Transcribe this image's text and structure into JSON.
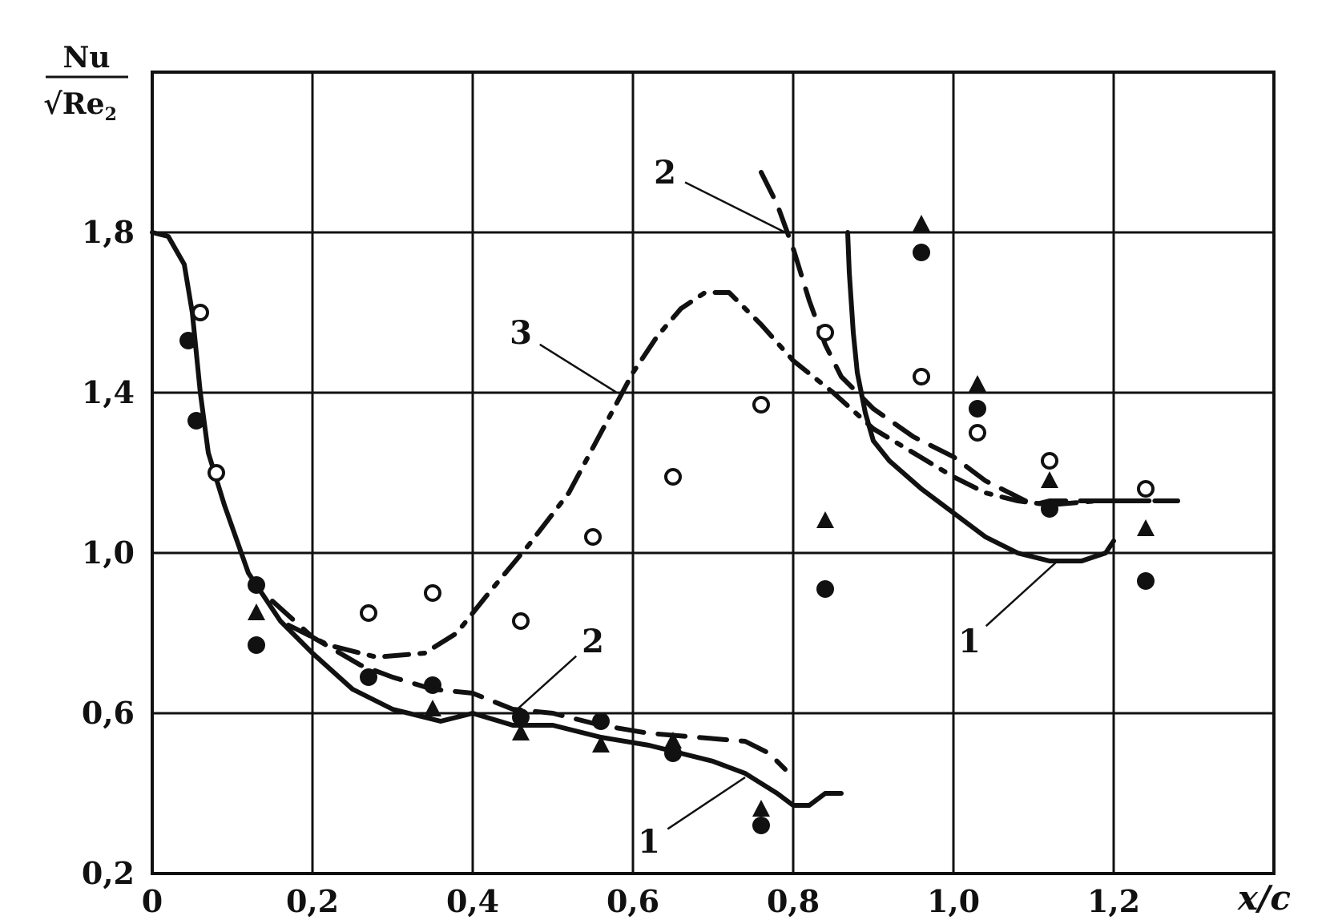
{
  "chart_data": {
    "type": "line",
    "ylabel": {
      "numerator": "Nu",
      "denominator": "√Re",
      "subscript": "2"
    },
    "xlabel": "x/c",
    "xlim": [
      0,
      1.4
    ],
    "ylim": [
      0.2,
      2.2
    ],
    "x_ticks": [
      {
        "value": 0,
        "label": "0"
      },
      {
        "value": 0.2,
        "label": "0,2"
      },
      {
        "value": 0.4,
        "label": "0,4"
      },
      {
        "value": 0.6,
        "label": "0,6"
      },
      {
        "value": 0.8,
        "label": "0,8"
      },
      {
        "value": 1.0,
        "label": "1,0"
      },
      {
        "value": 1.2,
        "label": "1,2"
      }
    ],
    "y_ticks": [
      {
        "value": 0.2,
        "label": "0,2"
      },
      {
        "value": 0.6,
        "label": "0,6"
      },
      {
        "value": 1.0,
        "label": "1,0"
      },
      {
        "value": 1.4,
        "label": "1,4"
      },
      {
        "value": 1.8,
        "label": "1,8"
      }
    ],
    "grid": true,
    "series": [
      {
        "id": "curve-1-suction",
        "style": "solid",
        "points": [
          [
            0,
            1.8
          ],
          [
            0.02,
            1.79
          ],
          [
            0.04,
            1.72
          ],
          [
            0.05,
            1.6
          ],
          [
            0.06,
            1.4
          ],
          [
            0.07,
            1.25
          ],
          [
            0.09,
            1.12
          ],
          [
            0.12,
            0.95
          ],
          [
            0.16,
            0.83
          ],
          [
            0.2,
            0.75
          ],
          [
            0.25,
            0.66
          ],
          [
            0.3,
            0.61
          ],
          [
            0.36,
            0.58
          ],
          [
            0.4,
            0.6
          ],
          [
            0.45,
            0.57
          ],
          [
            0.5,
            0.57
          ],
          [
            0.56,
            0.54
          ],
          [
            0.62,
            0.52
          ],
          [
            0.66,
            0.5
          ],
          [
            0.7,
            0.48
          ],
          [
            0.74,
            0.45
          ],
          [
            0.78,
            0.4
          ],
          [
            0.8,
            0.37
          ],
          [
            0.82,
            0.37
          ],
          [
            0.84,
            0.4
          ],
          [
            0.86,
            0.4
          ]
        ]
      },
      {
        "id": "curve-1-pressure",
        "style": "solid",
        "points": [
          [
            0.868,
            1.8
          ],
          [
            0.87,
            1.7
          ],
          [
            0.875,
            1.55
          ],
          [
            0.88,
            1.45
          ],
          [
            0.89,
            1.35
          ],
          [
            0.9,
            1.28
          ],
          [
            0.92,
            1.23
          ],
          [
            0.96,
            1.16
          ],
          [
            1.0,
            1.1
          ],
          [
            1.04,
            1.04
          ],
          [
            1.08,
            1.0
          ],
          [
            1.12,
            0.98
          ],
          [
            1.16,
            0.98
          ],
          [
            1.19,
            1.0
          ],
          [
            1.2,
            1.03
          ]
        ]
      },
      {
        "id": "curve-2-suction",
        "style": "dashed",
        "points": [
          [
            0.15,
            0.88
          ],
          [
            0.2,
            0.79
          ],
          [
            0.26,
            0.72
          ],
          [
            0.3,
            0.69
          ],
          [
            0.35,
            0.66
          ],
          [
            0.4,
            0.65
          ],
          [
            0.45,
            0.61
          ],
          [
            0.5,
            0.6
          ],
          [
            0.56,
            0.57
          ],
          [
            0.62,
            0.55
          ],
          [
            0.68,
            0.54
          ],
          [
            0.74,
            0.53
          ],
          [
            0.77,
            0.5
          ],
          [
            0.79,
            0.46
          ]
        ]
      },
      {
        "id": "curve-2-pressure",
        "style": "dashed",
        "points": [
          [
            0.76,
            1.95
          ],
          [
            0.78,
            1.87
          ],
          [
            0.8,
            1.76
          ],
          [
            0.82,
            1.63
          ],
          [
            0.84,
            1.52
          ],
          [
            0.86,
            1.44
          ],
          [
            0.9,
            1.36
          ],
          [
            0.95,
            1.29
          ],
          [
            1.0,
            1.24
          ],
          [
            1.04,
            1.18
          ],
          [
            1.08,
            1.14
          ],
          [
            1.1,
            1.12
          ],
          [
            1.12,
            1.13
          ],
          [
            1.16,
            1.13
          ],
          [
            1.2,
            1.13
          ],
          [
            1.28,
            1.13
          ]
        ]
      },
      {
        "id": "curve-3",
        "style": "dash-dot",
        "points": [
          [
            0.17,
            0.82
          ],
          [
            0.22,
            0.77
          ],
          [
            0.28,
            0.74
          ],
          [
            0.34,
            0.75
          ],
          [
            0.38,
            0.8
          ],
          [
            0.42,
            0.9
          ],
          [
            0.47,
            1.02
          ],
          [
            0.52,
            1.15
          ],
          [
            0.56,
            1.3
          ],
          [
            0.6,
            1.45
          ],
          [
            0.63,
            1.54
          ],
          [
            0.66,
            1.61
          ],
          [
            0.69,
            1.65
          ],
          [
            0.72,
            1.65
          ],
          [
            0.76,
            1.57
          ],
          [
            0.8,
            1.48
          ],
          [
            0.85,
            1.4
          ],
          [
            0.9,
            1.31
          ],
          [
            0.95,
            1.25
          ],
          [
            1.0,
            1.19
          ],
          [
            1.04,
            1.15
          ],
          [
            1.08,
            1.13
          ],
          [
            1.12,
            1.12
          ],
          [
            1.18,
            1.13
          ],
          [
            1.28,
            1.13
          ]
        ]
      }
    ],
    "markers": {
      "open_circle": [
        [
          0.06,
          1.6
        ],
        [
          0.08,
          1.2
        ],
        [
          0.27,
          0.85
        ],
        [
          0.35,
          0.9
        ],
        [
          0.46,
          0.83
        ],
        [
          0.55,
          1.04
        ],
        [
          0.65,
          1.19
        ],
        [
          0.76,
          1.37
        ],
        [
          0.84,
          1.55
        ],
        [
          0.96,
          1.44
        ],
        [
          1.03,
          1.3
        ],
        [
          1.12,
          1.23
        ],
        [
          1.24,
          1.16
        ]
      ],
      "filled_circle": [
        [
          0.045,
          1.53
        ],
        [
          0.055,
          1.33
        ],
        [
          0.13,
          0.92
        ],
        [
          0.13,
          0.77
        ],
        [
          0.27,
          0.69
        ],
        [
          0.35,
          0.67
        ],
        [
          0.46,
          0.59
        ],
        [
          0.56,
          0.58
        ],
        [
          0.65,
          0.5
        ],
        [
          0.76,
          0.32
        ],
        [
          0.84,
          0.91
        ],
        [
          0.96,
          1.75
        ],
        [
          1.03,
          1.36
        ],
        [
          1.12,
          1.11
        ],
        [
          1.24,
          0.93
        ]
      ],
      "triangle": [
        [
          0.13,
          0.85
        ],
        [
          0.35,
          0.61
        ],
        [
          0.46,
          0.55
        ],
        [
          0.56,
          0.52
        ],
        [
          0.65,
          0.53
        ],
        [
          0.76,
          0.36
        ],
        [
          0.84,
          1.08
        ],
        [
          0.96,
          1.82
        ],
        [
          1.03,
          1.42
        ],
        [
          1.12,
          1.18
        ],
        [
          1.24,
          1.06
        ]
      ]
    },
    "annotations": [
      {
        "text": "1",
        "at": [
          0.62,
          0.28
        ],
        "points_to": [
          0.74,
          0.44
        ]
      },
      {
        "text": "1",
        "at": [
          1.02,
          0.78
        ],
        "points_to": [
          1.13,
          0.98
        ]
      },
      {
        "text": "2",
        "at": [
          0.55,
          0.78
        ],
        "points_to": [
          0.45,
          0.6
        ]
      },
      {
        "text": "2",
        "at": [
          0.64,
          1.95
        ],
        "points_to": [
          0.79,
          1.8
        ]
      },
      {
        "text": "3",
        "at": [
          0.46,
          1.55
        ],
        "points_to": [
          0.58,
          1.4
        ]
      }
    ]
  }
}
